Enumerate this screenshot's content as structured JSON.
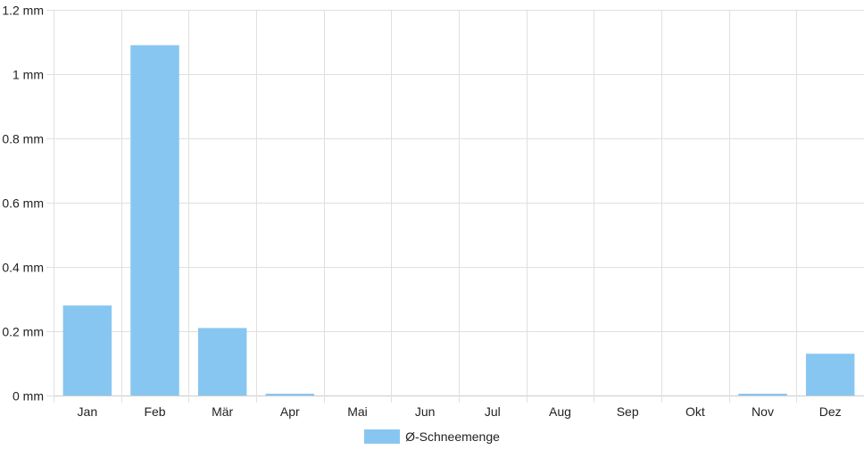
{
  "chart_data": {
    "type": "bar",
    "categories": [
      "Jan",
      "Feb",
      "Mär",
      "Apr",
      "Mai",
      "Jun",
      "Jul",
      "Aug",
      "Sep",
      "Okt",
      "Nov",
      "Dez"
    ],
    "series": [
      {
        "name": "Ø-Schneemenge",
        "values": [
          0.28,
          1.09,
          0.21,
          0.005,
          0,
          0,
          0,
          0,
          0,
          0,
          0.005,
          0.13
        ]
      }
    ],
    "ylim": [
      0,
      1.2
    ],
    "yticks": [
      0,
      0.2,
      0.4,
      0.6,
      0.8,
      1,
      1.2
    ],
    "ytick_labels": [
      "0 mm",
      "0.2 mm",
      "0.4 mm",
      "0.6 mm",
      "0.8 mm",
      "1 mm",
      "1.2 mm"
    ],
    "grid": true,
    "legend_position": "bottom-center",
    "bar_color": "#87c6f1",
    "grid_color": "#e0e0e0"
  }
}
